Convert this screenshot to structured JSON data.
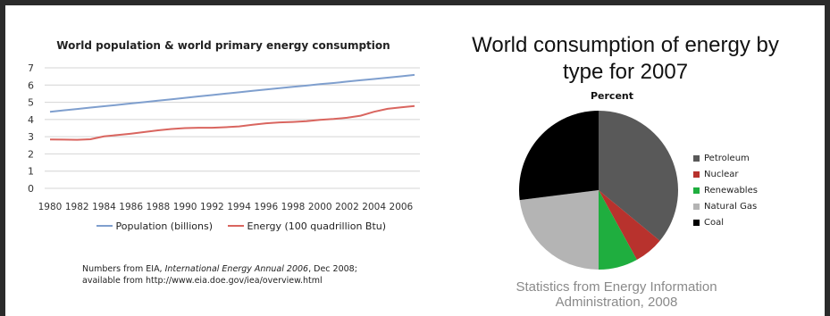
{
  "chart_data": [
    {
      "type": "line",
      "title": "World population & world primary energy consumption",
      "xlabel": "",
      "ylabel": "",
      "ylim": [
        0,
        7
      ],
      "yticks": [
        "0",
        "1",
        "2",
        "3",
        "4",
        "5",
        "6",
        "7"
      ],
      "x": [
        "1980",
        "1981",
        "1982",
        "1983",
        "1984",
        "1985",
        "1986",
        "1987",
        "1988",
        "1989",
        "1990",
        "1991",
        "1992",
        "1993",
        "1994",
        "1995",
        "1996",
        "1997",
        "1998",
        "1999",
        "2000",
        "2001",
        "2002",
        "2003",
        "2004",
        "2005",
        "2006",
        "2007"
      ],
      "xtick_labels": [
        "1980",
        "1982",
        "1984",
        "1986",
        "1988",
        "1990",
        "1992",
        "1994",
        "1996",
        "1998",
        "2000",
        "2002",
        "2004",
        "2006"
      ],
      "grid": true,
      "legend_position": "bottom",
      "series": [
        {
          "name": "Population (billions)",
          "color": "#7f9fce",
          "values": [
            4.45,
            4.53,
            4.61,
            4.69,
            4.77,
            4.85,
            4.93,
            5.01,
            5.09,
            5.17,
            5.26,
            5.34,
            5.42,
            5.5,
            5.58,
            5.66,
            5.74,
            5.82,
            5.9,
            5.97,
            6.05,
            6.12,
            6.2,
            6.28,
            6.35,
            6.43,
            6.51,
            6.59
          ]
        },
        {
          "name": "Energy (100 quadrillion Btu)",
          "color": "#d9655f",
          "values": [
            2.84,
            2.83,
            2.82,
            2.85,
            3.02,
            3.1,
            3.18,
            3.27,
            3.37,
            3.45,
            3.5,
            3.52,
            3.52,
            3.55,
            3.6,
            3.69,
            3.78,
            3.83,
            3.86,
            3.9,
            3.98,
            4.03,
            4.1,
            4.22,
            4.45,
            4.62,
            4.71,
            4.78
          ]
        }
      ],
      "note_line1_prefix": "Numbers from EIA, ",
      "note_line1_italic": "International Energy Annual 2006",
      "note_line1_suffix": ", Dec 2008;",
      "note_line2": "available from http://www.eia.doe.gov/iea/overview.html"
    },
    {
      "type": "pie",
      "title_line1": "World consumption of energy by",
      "title_line2": "type for 2007",
      "subtitle": "Percent",
      "legend_position": "right",
      "slices": [
        {
          "label": "Petroleum",
          "value": 36,
          "color": "#595959"
        },
        {
          "label": "Nuclear",
          "value": 6,
          "color": "#b8322d"
        },
        {
          "label": "Renewables",
          "value": 8,
          "color": "#1fae3f"
        },
        {
          "label": "Natural Gas",
          "value": 23,
          "color": "#b4b4b4"
        },
        {
          "label": "Coal",
          "value": 27,
          "color": "#000000"
        }
      ],
      "credit_line1": "Statistics from Energy Information",
      "credit_line2": "Administration, 2008"
    }
  ]
}
